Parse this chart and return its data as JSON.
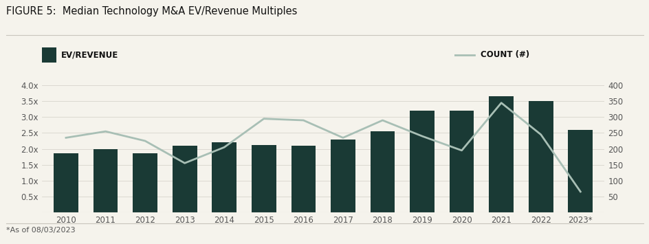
{
  "title": "FIGURE 5:  Median Technology M&A EV/Revenue Multiples",
  "footnote": "*As of 08/03/2023",
  "years": [
    2010,
    2011,
    2012,
    2013,
    2014,
    2015,
    2016,
    2017,
    2018,
    2019,
    2020,
    2021,
    2022,
    2023
  ],
  "year_labels": [
    "2010",
    "2011",
    "2012",
    "2013",
    "2014",
    "2015",
    "2016",
    "2017",
    "2018",
    "2019",
    "2020",
    "2021",
    "2022",
    "2023*"
  ],
  "ev_revenue": [
    1.85,
    2.0,
    1.87,
    2.1,
    2.2,
    2.13,
    2.1,
    2.3,
    2.55,
    3.2,
    3.2,
    3.65,
    3.5,
    2.6
  ],
  "count": [
    235,
    255,
    225,
    155,
    205,
    295,
    290,
    235,
    290,
    240,
    195,
    345,
    245,
    65
  ],
  "bar_color": "#1a3a35",
  "line_color": "#a8bfb5",
  "background_color": "#f5f3ec",
  "ylim_left": [
    0,
    4.0
  ],
  "ylim_right": [
    0,
    400
  ],
  "yticks_left": [
    0.5,
    1.0,
    1.5,
    2.0,
    2.5,
    3.0,
    3.5,
    4.0
  ],
  "ytick_labels_left": [
    "0.5x",
    "1.0x",
    "1.5x",
    "2.0x",
    "2.5x",
    "3.0x",
    "3.5x",
    "4.0x"
  ],
  "yticks_right": [
    50,
    100,
    150,
    200,
    250,
    300,
    350,
    400
  ],
  "ytick_labels_right": [
    "50",
    "100",
    "150",
    "200",
    "250",
    "300",
    "350",
    "400"
  ],
  "legend_bar_label": "EV/REVENUE",
  "legend_line_label": "COUNT (#)",
  "bar_width": 0.62,
  "title_fontsize": 10.5,
  "legend_fontsize": 8.5,
  "tick_fontsize": 8.5,
  "footnote_fontsize": 8,
  "grid_color": "#d8d5cc",
  "separator_color": "#c8c5bc",
  "tick_color": "#555555"
}
